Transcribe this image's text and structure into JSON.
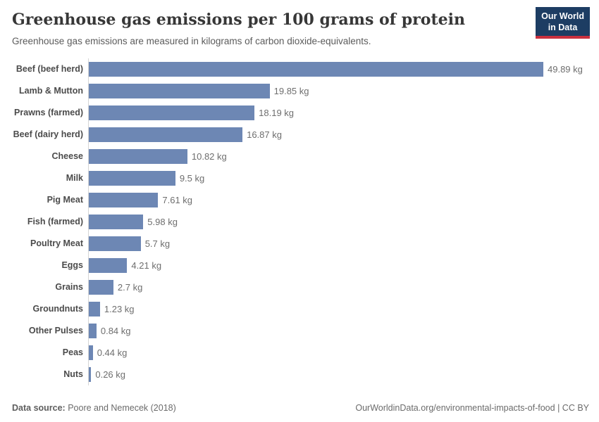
{
  "header": {
    "title": "Greenhouse gas emissions per 100 grams of protein",
    "subtitle": "Greenhouse gas emissions are measured in kilograms of carbon dioxide-equivalents.",
    "logo": {
      "line1": "Our World",
      "line2": "in Data"
    }
  },
  "chart_data": {
    "type": "bar",
    "orientation": "horizontal",
    "title": "Greenhouse gas emissions per 100 grams of protein",
    "xlabel": "",
    "ylabel": "",
    "unit": "kg",
    "grid": false,
    "xlim": [
      0,
      49.89
    ],
    "categories": [
      "Beef (beef herd)",
      "Lamb & Mutton",
      "Prawns (farmed)",
      "Beef (dairy herd)",
      "Cheese",
      "Milk",
      "Pig Meat",
      "Fish (farmed)",
      "Poultry Meat",
      "Eggs",
      "Grains",
      "Groundnuts",
      "Other Pulses",
      "Peas",
      "Nuts"
    ],
    "values": [
      49.89,
      19.85,
      18.19,
      16.87,
      10.82,
      9.5,
      7.61,
      5.98,
      5.7,
      4.21,
      2.7,
      1.23,
      0.84,
      0.44,
      0.26
    ],
    "value_labels": [
      "49.89 kg",
      "19.85 kg",
      "18.19 kg",
      "16.87 kg",
      "10.82 kg",
      "9.5 kg",
      "7.61 kg",
      "5.98 kg",
      "5.7 kg",
      "4.21 kg",
      "2.7 kg",
      "1.23 kg",
      "0.84 kg",
      "0.44 kg",
      "0.26 kg"
    ],
    "bar_color": "#6d87b4",
    "axis_line_color": "#d6d6d6",
    "legend": "none"
  },
  "footer": {
    "source_label": "Data source:",
    "source_value": " Poore and Nemecek (2018)",
    "link": "OurWorldinData.org/environmental-impacts-of-food",
    "separator": " | ",
    "license": "CC BY"
  },
  "colors": {
    "bar": "#6d87b4",
    "logo_background": "#1d3d63",
    "logo_underline": "#c9303f",
    "title_text": "#373737",
    "subtitle_text": "#5b5b5b",
    "category_label_text": "#4b4b4b",
    "value_label_text": "#6e6e6e",
    "footer_text": "#6b6b6b"
  }
}
